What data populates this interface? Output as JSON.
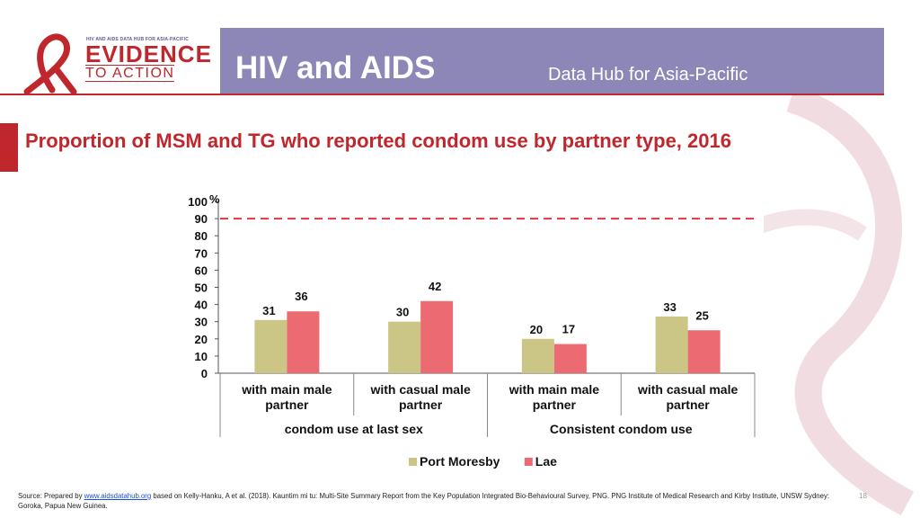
{
  "header": {
    "logo_top": "HIV AND AIDS DATA HUB FOR ASIA-PACIFIC",
    "logo_evidence": "EVIDENCE",
    "logo_action": "TO ACTION",
    "title": "HIV and AIDS",
    "subtitle": "Data Hub for Asia-Pacific"
  },
  "slide_title": "Proportion of MSM and TG who reported condom use by partner type, 2016",
  "chart_data": {
    "type": "bar",
    "title": "",
    "ylabel": "%",
    "ylim": [
      0,
      100
    ],
    "yticks": [
      "0",
      "10",
      "20",
      "30",
      "40",
      "50",
      "60",
      "70",
      "80",
      "90",
      "100"
    ],
    "reference_line": 90,
    "categories": [
      [
        "with main male",
        "partner"
      ],
      [
        "with casual male",
        "partner"
      ],
      [
        "with main male",
        "partner"
      ],
      [
        "with casual male",
        "partner"
      ]
    ],
    "groups": [
      "condom use at last sex",
      "Consistent condom use"
    ],
    "series": [
      {
        "name": "Port Moresby",
        "color": "#cbc686",
        "values": [
          31,
          30,
          20,
          33
        ]
      },
      {
        "name": "Lae",
        "color": "#ec6a72",
        "values": [
          36,
          42,
          17,
          25
        ]
      }
    ],
    "legend_position": "bottom"
  },
  "footer": {
    "source_prefix": "Source: Prepared by ",
    "source_link": "www.aidsdatahub.org",
    "source_rest": " based on Kelly-Hanku, A et al. (2018). Kauntim mi tu: Multi-Site Summary Report from the Key Population Integrated Bio-Behavioural Survey, PNG. PNG Institute of Medical Research and Kirby Institute, UNSW Sydney: Goroka, Papua New Guinea.",
    "page_number": "18"
  }
}
